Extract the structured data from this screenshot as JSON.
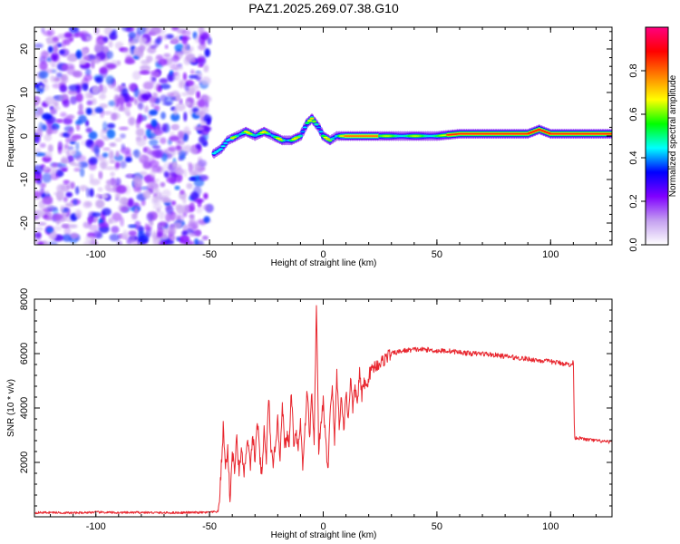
{
  "figure": {
    "title": "PAZ1.2025.269.07.38.G10"
  },
  "chart_data": [
    {
      "type": "heatmap",
      "xlabel": "Height of straight line (km)",
      "ylabel": "Frequency (Hz)",
      "xlim": [
        -127,
        127
      ],
      "ylim": [
        -25,
        25
      ],
      "x_ticks": [
        -100,
        -50,
        0,
        50,
        100
      ],
      "y_ticks": [
        -20,
        -10,
        0,
        10,
        20
      ],
      "grid": false,
      "noise_region": {
        "x_range": [
          -127,
          -50
        ],
        "y_range": [
          -25,
          25
        ],
        "description_color": "#8a2be2"
      },
      "ridge": [
        {
          "x": -48,
          "y": -4
        },
        {
          "x": -45,
          "y": -3
        },
        {
          "x": -42,
          "y": -1
        },
        {
          "x": -38,
          "y": 0
        },
        {
          "x": -34,
          "y": 1
        },
        {
          "x": -30,
          "y": 0
        },
        {
          "x": -26,
          "y": 1
        },
        {
          "x": -22,
          "y": 0
        },
        {
          "x": -18,
          "y": -1
        },
        {
          "x": -14,
          "y": -1
        },
        {
          "x": -10,
          "y": 0
        },
        {
          "x": -7,
          "y": 3
        },
        {
          "x": -5,
          "y": 4
        },
        {
          "x": -2,
          "y": 2
        },
        {
          "x": 0,
          "y": 0
        },
        {
          "x": 3,
          "y": -1
        },
        {
          "x": 6,
          "y": 0
        },
        {
          "x": 10,
          "y": 0
        },
        {
          "x": 20,
          "y": 0
        },
        {
          "x": 30,
          "y": 0
        },
        {
          "x": 40,
          "y": 0
        },
        {
          "x": 50,
          "y": 0
        },
        {
          "x": 60,
          "y": 0.5
        },
        {
          "x": 70,
          "y": 0.5
        },
        {
          "x": 80,
          "y": 0.5
        },
        {
          "x": 90,
          "y": 0.5
        },
        {
          "x": 95,
          "y": 1.5
        },
        {
          "x": 100,
          "y": 0.5
        },
        {
          "x": 110,
          "y": 0.5
        },
        {
          "x": 120,
          "y": 0.5
        },
        {
          "x": 127,
          "y": 0.5
        }
      ],
      "colorbar": {
        "label": "Normalized spectral amplitude",
        "range": [
          0,
          1
        ],
        "ticks": [
          0.0,
          0.2,
          0.4,
          0.6,
          0.8
        ],
        "tick_labels": [
          "0.0",
          "0.2",
          "0.4",
          "0.6",
          "0.8"
        ],
        "colors": [
          "#ffffff",
          "#c4a0f0",
          "#8000ff",
          "#0000ff",
          "#00ffff",
          "#00ff00",
          "#ffff00",
          "#ff8000",
          "#ff0000",
          "#ff0080"
        ]
      }
    },
    {
      "type": "line",
      "xlabel": "Height of straight line (km)",
      "ylabel": "SNR (10 * v/v)",
      "xlim": [
        -127,
        127
      ],
      "ylim": [
        0,
        8000
      ],
      "x_ticks": [
        -100,
        -50,
        0,
        50,
        100
      ],
      "y_ticks": [
        2000,
        4000,
        6000,
        8000
      ],
      "grid": false,
      "line_color": "#e8262e",
      "series": [
        {
          "x": [
            -127,
            -120,
            -110,
            -100,
            -90,
            -80,
            -70,
            -60,
            -50,
            -46,
            -45,
            -44,
            -43,
            -42,
            -41,
            -40,
            -39,
            -38,
            -37,
            -36,
            -35,
            -34,
            -33,
            -32,
            -31,
            -30,
            -29,
            -28,
            -27,
            -26,
            -25,
            -24,
            -23,
            -22,
            -21,
            -20,
            -19,
            -18,
            -17,
            -16,
            -15,
            -14,
            -13,
            -12,
            -11,
            -10,
            -9,
            -8,
            -7,
            -6,
            -5,
            -4,
            -3,
            -2,
            -1,
            0,
            1,
            2,
            3,
            4,
            5,
            6,
            7,
            8,
            9,
            10,
            11,
            12,
            13,
            14,
            15,
            16,
            17,
            18,
            19,
            20,
            22,
            24,
            26,
            28,
            30,
            35,
            40,
            45,
            50,
            55,
            60,
            65,
            70,
            75,
            80,
            85,
            90,
            95,
            100,
            105,
            108,
            109,
            110,
            110.5,
            112,
            115,
            120,
            125,
            127
          ],
          "y": [
            150,
            160,
            140,
            170,
            150,
            160,
            145,
            155,
            160,
            200,
            1500,
            3300,
            1800,
            2500,
            600,
            2400,
            1700,
            2900,
            1600,
            2600,
            1500,
            2200,
            2800,
            1700,
            3100,
            2000,
            3600,
            2300,
            1400,
            3200,
            2100,
            4400,
            2600,
            1700,
            2800,
            3500,
            2200,
            4300,
            2500,
            3000,
            2600,
            4700,
            2700,
            3200,
            2500,
            3500,
            1900,
            3300,
            4700,
            2900,
            4600,
            2600,
            8000,
            2500,
            3300,
            4300,
            2900,
            1600,
            3800,
            4900,
            2700,
            5300,
            3400,
            4400,
            3200,
            4600,
            3600,
            5100,
            4000,
            4700,
            4200,
            5300,
            4400,
            5000,
            4700,
            5200,
            5500,
            5600,
            5700,
            5900,
            6000,
            6100,
            6150,
            6150,
            6100,
            6100,
            6050,
            6000,
            6000,
            5950,
            5900,
            5850,
            5800,
            5750,
            5700,
            5650,
            5600,
            5550,
            5700,
            2900,
            2900,
            2850,
            2800,
            2750,
            2750
          ]
        }
      ]
    }
  ]
}
